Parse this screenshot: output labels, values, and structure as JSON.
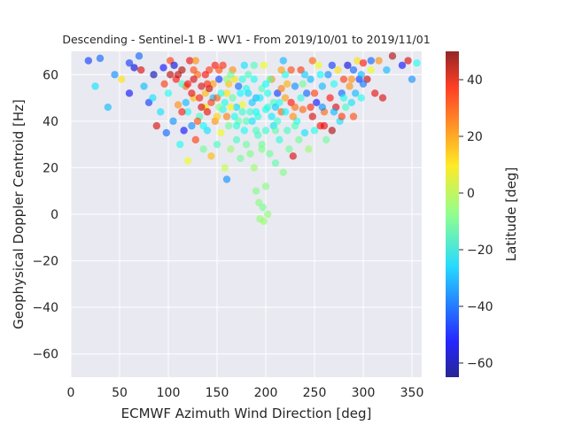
{
  "chart_data": {
    "type": "scatter",
    "title": "Descending - Sentinel-1 B - WV1 - From 2019/10/01 to 2019/11/01",
    "xlabel": "ECMWF Azimuth Wind Direction [deg]",
    "ylabel": "Geophysical Doppler Centroid [Hz]",
    "xlim": [
      0,
      360
    ],
    "ylim": [
      -70,
      70
    ],
    "xticks": [
      0,
      50,
      100,
      150,
      200,
      250,
      300,
      350
    ],
    "yticks": [
      -60,
      -40,
      -20,
      0,
      20,
      40,
      60
    ],
    "grid": true,
    "background": "#e9e9f1",
    "colorbar": {
      "label": "Latitude [deg]",
      "colormap": "jet",
      "range": [
        -65,
        50
      ],
      "ticks": [
        -60,
        -40,
        -20,
        0,
        20,
        40
      ]
    },
    "series": [
      {
        "points": [
          [
            18,
            66,
            -45
          ],
          [
            25,
            55,
            -25
          ],
          [
            38,
            46,
            -30
          ],
          [
            30,
            67,
            -40
          ],
          [
            45,
            60,
            -35
          ],
          [
            52,
            58,
            10
          ],
          [
            60,
            52,
            -50
          ],
          [
            65,
            63,
            -55
          ],
          [
            70,
            68,
            -40
          ],
          [
            75,
            55,
            -30
          ],
          [
            80,
            48,
            -45
          ],
          [
            85,
            60,
            -60
          ],
          [
            88,
            38,
            40
          ],
          [
            92,
            44,
            -25
          ],
          [
            95,
            63,
            -50
          ],
          [
            98,
            35,
            -40
          ],
          [
            100,
            52,
            -20
          ],
          [
            102,
            66,
            30
          ],
          [
            105,
            40,
            -35
          ],
          [
            108,
            58,
            35
          ],
          [
            110,
            47,
            20
          ],
          [
            112,
            30,
            -20
          ],
          [
            114,
            62,
            45
          ],
          [
            116,
            36,
            -50
          ],
          [
            118,
            55,
            25
          ],
          [
            120,
            23,
            5
          ],
          [
            120,
            44,
            -20
          ],
          [
            122,
            66,
            38
          ],
          [
            124,
            38,
            -35
          ],
          [
            126,
            50,
            15
          ],
          [
            128,
            32,
            30
          ],
          [
            130,
            60,
            25
          ],
          [
            132,
            42,
            -15
          ],
          [
            134,
            55,
            40
          ],
          [
            136,
            28,
            -10
          ],
          [
            138,
            46,
            10
          ],
          [
            140,
            36,
            -25
          ],
          [
            142,
            62,
            30
          ],
          [
            144,
            25,
            15
          ],
          [
            146,
            50,
            -30
          ],
          [
            148,
            40,
            20
          ],
          [
            150,
            30,
            -15
          ],
          [
            152,
            58,
            -45
          ],
          [
            154,
            35,
            5
          ],
          [
            156,
            45,
            -20
          ],
          [
            158,
            20,
            0
          ],
          [
            160,
            15,
            -35
          ],
          [
            160,
            52,
            10
          ],
          [
            162,
            38,
            -10
          ],
          [
            164,
            28,
            -5
          ],
          [
            166,
            62,
            20
          ],
          [
            168,
            42,
            -20
          ],
          [
            170,
            32,
            -15
          ],
          [
            172,
            55,
            -40
          ],
          [
            174,
            24,
            -10
          ],
          [
            176,
            47,
            5
          ],
          [
            178,
            36,
            -20
          ],
          [
            180,
            30,
            -10
          ],
          [
            182,
            60,
            -15
          ],
          [
            184,
            26,
            -8
          ],
          [
            186,
            40,
            -25
          ],
          [
            188,
            20,
            -5
          ],
          [
            190,
            50,
            -30
          ],
          [
            190,
            10,
            -8
          ],
          [
            192,
            34,
            -15
          ],
          [
            193,
            5,
            -7
          ],
          [
            194,
            -2,
            -6
          ],
          [
            196,
            30,
            -10
          ],
          [
            196,
            28,
            -8
          ],
          [
            197,
            3,
            -9
          ],
          [
            198,
            -3,
            -5
          ],
          [
            200,
            45,
            -20
          ],
          [
            200,
            12,
            -7
          ],
          [
            202,
            0,
            -6
          ],
          [
            204,
            26,
            -10
          ],
          [
            206,
            58,
            20
          ],
          [
            208,
            38,
            -25
          ],
          [
            210,
            22,
            -12
          ],
          [
            212,
            52,
            -45
          ],
          [
            214,
            32,
            -18
          ],
          [
            216,
            44,
            25
          ],
          [
            218,
            18,
            -8
          ],
          [
            220,
            60,
            -20
          ],
          [
            222,
            36,
            -15
          ],
          [
            224,
            28,
            -10
          ],
          [
            226,
            48,
            35
          ],
          [
            228,
            25,
            40
          ],
          [
            230,
            55,
            -35
          ],
          [
            232,
            40,
            -20
          ],
          [
            234,
            32,
            -10
          ],
          [
            236,
            62,
            30
          ],
          [
            238,
            45,
            25
          ],
          [
            240,
            35,
            -25
          ],
          [
            242,
            52,
            -40
          ],
          [
            244,
            28,
            -5
          ],
          [
            246,
            58,
            -30
          ],
          [
            248,
            42,
            40
          ],
          [
            250,
            36,
            -20
          ],
          [
            252,
            48,
            -50
          ],
          [
            254,
            64,
            5
          ],
          [
            256,
            38,
            35
          ],
          [
            258,
            55,
            -30
          ],
          [
            260,
            44,
            25
          ],
          [
            262,
            32,
            -10
          ],
          [
            264,
            60,
            -35
          ],
          [
            266,
            50,
            35
          ],
          [
            268,
            36,
            45
          ],
          [
            270,
            56,
            -20
          ],
          [
            272,
            46,
            40
          ],
          [
            274,
            62,
            10
          ],
          [
            276,
            40,
            -25
          ],
          [
            278,
            52,
            -40
          ],
          [
            280,
            58,
            30
          ],
          [
            282,
            46,
            -15
          ],
          [
            284,
            64,
            -55
          ],
          [
            286,
            55,
            20
          ],
          [
            288,
            48,
            -25
          ],
          [
            290,
            62,
            -40
          ],
          [
            292,
            52,
            -30
          ],
          [
            294,
            66,
            10
          ],
          [
            296,
            58,
            -45
          ],
          [
            298,
            60,
            -30
          ],
          [
            300,
            65,
            35
          ],
          [
            304,
            58,
            42
          ],
          [
            308,
            62,
            5
          ],
          [
            312,
            52,
            38
          ],
          [
            316,
            66,
            20
          ],
          [
            320,
            50,
            40
          ],
          [
            324,
            62,
            -30
          ],
          [
            330,
            68,
            45
          ],
          [
            340,
            64,
            -50
          ],
          [
            346,
            66,
            40
          ],
          [
            350,
            58,
            -35
          ],
          [
            355,
            65,
            -20
          ],
          [
            60,
            65,
            -45
          ],
          [
            72,
            62,
            40
          ],
          [
            84,
            50,
            -25
          ],
          [
            96,
            56,
            30
          ],
          [
            106,
            64,
            -55
          ],
          [
            118,
            48,
            -30
          ],
          [
            128,
            66,
            20
          ],
          [
            138,
            52,
            15
          ],
          [
            148,
            64,
            35
          ],
          [
            158,
            48,
            -20
          ],
          [
            168,
            58,
            10
          ],
          [
            178,
            64,
            -25
          ],
          [
            188,
            58,
            -20
          ],
          [
            198,
            64,
            5
          ],
          [
            208,
            48,
            -15
          ],
          [
            218,
            66,
            -30
          ],
          [
            228,
            42,
            20
          ],
          [
            238,
            56,
            -10
          ],
          [
            248,
            66,
            25
          ],
          [
            258,
            46,
            -35
          ],
          [
            268,
            64,
            -45
          ],
          [
            278,
            42,
            30
          ],
          [
            288,
            58,
            20
          ],
          [
            298,
            50,
            -20
          ],
          [
            308,
            66,
            -40
          ],
          [
            114,
            56,
            -15
          ],
          [
            126,
            62,
            28
          ],
          [
            136,
            38,
            -22
          ],
          [
            146,
            56,
            18
          ],
          [
            156,
            64,
            32
          ],
          [
            166,
            50,
            -12
          ],
          [
            176,
            58,
            -18
          ],
          [
            186,
            48,
            -28
          ],
          [
            196,
            54,
            -14
          ],
          [
            206,
            42,
            -24
          ],
          [
            216,
            54,
            22
          ],
          [
            226,
            62,
            28
          ],
          [
            236,
            50,
            -18
          ],
          [
            246,
            46,
            32
          ],
          [
            256,
            60,
            -22
          ],
          [
            140,
            44,
            38
          ],
          [
            150,
            50,
            26
          ],
          [
            160,
            42,
            22
          ],
          [
            170,
            46,
            -26
          ],
          [
            180,
            40,
            -14
          ],
          [
            190,
            44,
            -22
          ],
          [
            200,
            36,
            -16
          ],
          [
            210,
            46,
            -28
          ],
          [
            220,
            50,
            18
          ],
          [
            230,
            46,
            24
          ],
          [
            132,
            50,
            34
          ],
          [
            142,
            54,
            42
          ],
          [
            152,
            46,
            -8
          ],
          [
            162,
            56,
            14
          ],
          [
            172,
            40,
            -12
          ],
          [
            182,
            52,
            -26
          ],
          [
            192,
            42,
            -18
          ],
          [
            202,
            52,
            -20
          ],
          [
            212,
            40,
            -16
          ],
          [
            222,
            56,
            16
          ],
          [
            124,
            52,
            38
          ],
          [
            134,
            46,
            40
          ],
          [
            144,
            48,
            30
          ],
          [
            154,
            52,
            -18
          ],
          [
            164,
            46,
            8
          ],
          [
            174,
            52,
            -22
          ],
          [
            184,
            44,
            -16
          ],
          [
            194,
            50,
            -24
          ],
          [
            204,
            58,
            -12
          ],
          [
            214,
            48,
            -20
          ],
          [
            110,
            60,
            42
          ],
          [
            120,
            56,
            36
          ],
          [
            130,
            40,
            28
          ],
          [
            140,
            56,
            32
          ],
          [
            150,
            42,
            12
          ],
          [
            160,
            58,
            -6
          ],
          [
            170,
            38,
            -18
          ],
          [
            180,
            54,
            -20
          ],
          [
            190,
            36,
            -14
          ],
          [
            200,
            56,
            -22
          ],
          [
            210,
            36,
            -12
          ],
          [
            220,
            44,
            -22
          ],
          [
            230,
            38,
            -14
          ],
          [
            240,
            60,
            -28
          ],
          [
            250,
            52,
            30
          ],
          [
            260,
            38,
            38
          ],
          [
            270,
            44,
            -30
          ],
          [
            280,
            50,
            -20
          ],
          [
            290,
            42,
            28
          ],
          [
            300,
            56,
            -38
          ],
          [
            102,
            60,
            44
          ],
          [
            114,
            44,
            34
          ],
          [
            126,
            58,
            40
          ],
          [
            138,
            60,
            36
          ],
          [
            152,
            62,
            28
          ],
          [
            164,
            60,
            -10
          ],
          [
            176,
            44,
            -16
          ],
          [
            188,
            64,
            -14
          ],
          [
            202,
            46,
            -18
          ],
          [
            216,
            62,
            18
          ]
        ]
      }
    ]
  }
}
